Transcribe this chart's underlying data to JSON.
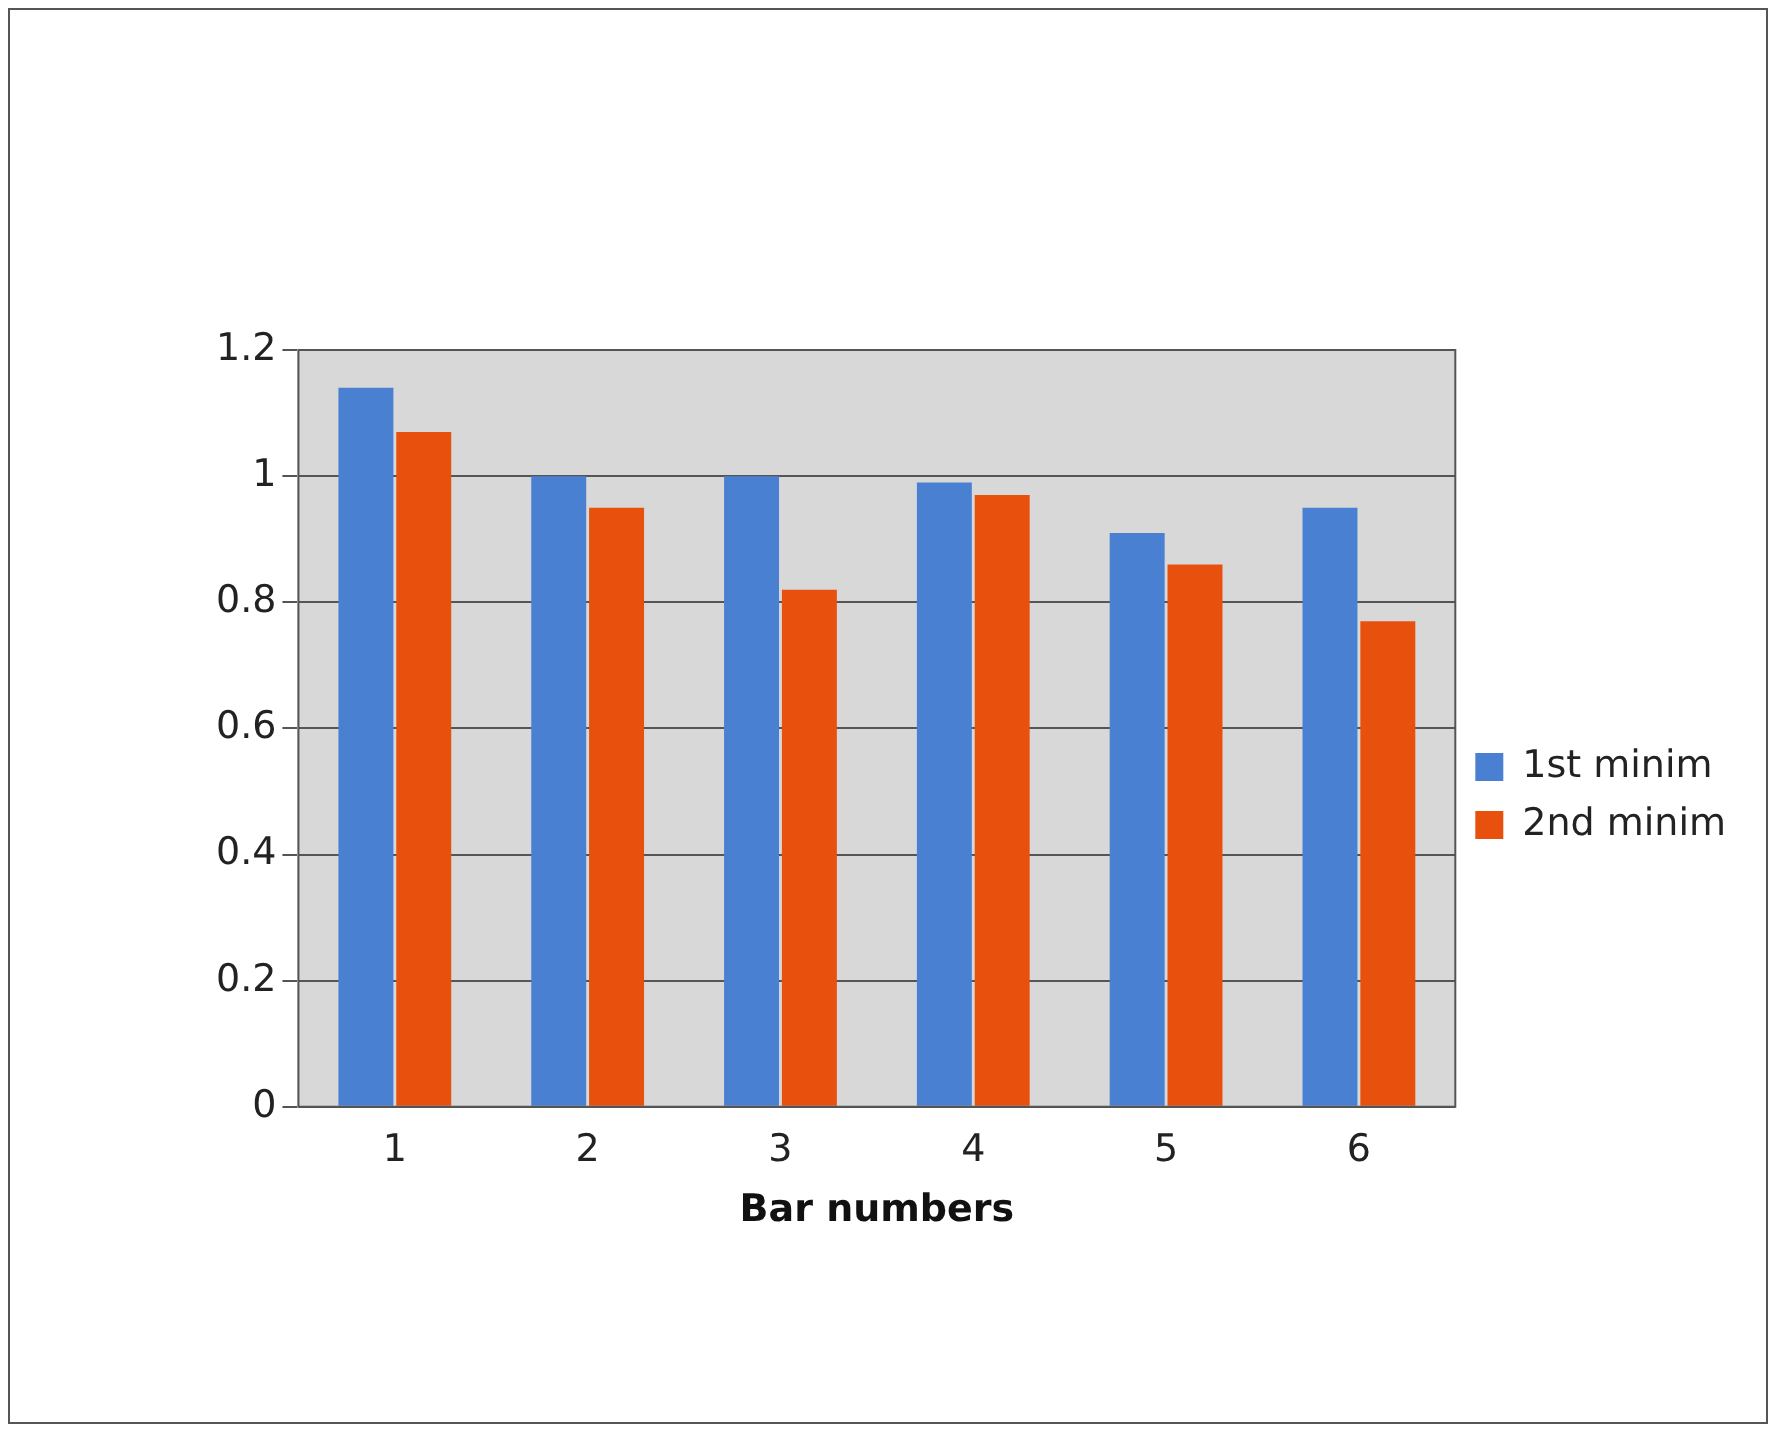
{
  "chart_data": {
    "type": "bar",
    "xlabel": "Bar numbers",
    "categories": [
      "1",
      "2",
      "3",
      "4",
      "5",
      "6"
    ],
    "series": [
      {
        "name": "1st minim",
        "color": "#4a80d2",
        "values": [
          1.14,
          1.0,
          1.0,
          0.99,
          0.91,
          0.95
        ]
      },
      {
        "name": "2nd minim",
        "color": "#e8500e",
        "values": [
          1.07,
          0.95,
          0.82,
          0.97,
          0.86,
          0.77
        ]
      }
    ],
    "ylim": [
      0,
      1.2
    ],
    "yticks": [
      0,
      0.2,
      0.4,
      0.6,
      0.8,
      1,
      1.2
    ],
    "grid": "y",
    "legend": "right"
  }
}
